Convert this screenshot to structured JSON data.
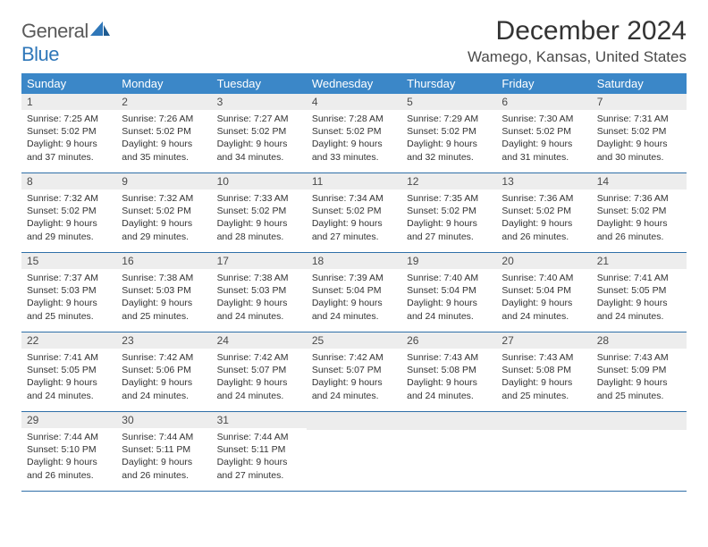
{
  "logo": {
    "general": "General",
    "blue": "Blue"
  },
  "title": "December 2024",
  "location": "Wamego, Kansas, United States",
  "colors": {
    "header_bg": "#3b87c8",
    "header_text": "#ffffff",
    "daynum_bg": "#ededed",
    "row_divider": "#2f6fa8",
    "logo_gray": "#5a5a5a",
    "logo_blue": "#2f77b9",
    "body_text": "#333333"
  },
  "weekdays": [
    "Sunday",
    "Monday",
    "Tuesday",
    "Wednesday",
    "Thursday",
    "Friday",
    "Saturday"
  ],
  "weeks": [
    [
      {
        "n": "1",
        "sr": "Sunrise: 7:25 AM",
        "ss": "Sunset: 5:02 PM",
        "d1": "Daylight: 9 hours",
        "d2": "and 37 minutes."
      },
      {
        "n": "2",
        "sr": "Sunrise: 7:26 AM",
        "ss": "Sunset: 5:02 PM",
        "d1": "Daylight: 9 hours",
        "d2": "and 35 minutes."
      },
      {
        "n": "3",
        "sr": "Sunrise: 7:27 AM",
        "ss": "Sunset: 5:02 PM",
        "d1": "Daylight: 9 hours",
        "d2": "and 34 minutes."
      },
      {
        "n": "4",
        "sr": "Sunrise: 7:28 AM",
        "ss": "Sunset: 5:02 PM",
        "d1": "Daylight: 9 hours",
        "d2": "and 33 minutes."
      },
      {
        "n": "5",
        "sr": "Sunrise: 7:29 AM",
        "ss": "Sunset: 5:02 PM",
        "d1": "Daylight: 9 hours",
        "d2": "and 32 minutes."
      },
      {
        "n": "6",
        "sr": "Sunrise: 7:30 AM",
        "ss": "Sunset: 5:02 PM",
        "d1": "Daylight: 9 hours",
        "d2": "and 31 minutes."
      },
      {
        "n": "7",
        "sr": "Sunrise: 7:31 AM",
        "ss": "Sunset: 5:02 PM",
        "d1": "Daylight: 9 hours",
        "d2": "and 30 minutes."
      }
    ],
    [
      {
        "n": "8",
        "sr": "Sunrise: 7:32 AM",
        "ss": "Sunset: 5:02 PM",
        "d1": "Daylight: 9 hours",
        "d2": "and 29 minutes."
      },
      {
        "n": "9",
        "sr": "Sunrise: 7:32 AM",
        "ss": "Sunset: 5:02 PM",
        "d1": "Daylight: 9 hours",
        "d2": "and 29 minutes."
      },
      {
        "n": "10",
        "sr": "Sunrise: 7:33 AM",
        "ss": "Sunset: 5:02 PM",
        "d1": "Daylight: 9 hours",
        "d2": "and 28 minutes."
      },
      {
        "n": "11",
        "sr": "Sunrise: 7:34 AM",
        "ss": "Sunset: 5:02 PM",
        "d1": "Daylight: 9 hours",
        "d2": "and 27 minutes."
      },
      {
        "n": "12",
        "sr": "Sunrise: 7:35 AM",
        "ss": "Sunset: 5:02 PM",
        "d1": "Daylight: 9 hours",
        "d2": "and 27 minutes."
      },
      {
        "n": "13",
        "sr": "Sunrise: 7:36 AM",
        "ss": "Sunset: 5:02 PM",
        "d1": "Daylight: 9 hours",
        "d2": "and 26 minutes."
      },
      {
        "n": "14",
        "sr": "Sunrise: 7:36 AM",
        "ss": "Sunset: 5:02 PM",
        "d1": "Daylight: 9 hours",
        "d2": "and 26 minutes."
      }
    ],
    [
      {
        "n": "15",
        "sr": "Sunrise: 7:37 AM",
        "ss": "Sunset: 5:03 PM",
        "d1": "Daylight: 9 hours",
        "d2": "and 25 minutes."
      },
      {
        "n": "16",
        "sr": "Sunrise: 7:38 AM",
        "ss": "Sunset: 5:03 PM",
        "d1": "Daylight: 9 hours",
        "d2": "and 25 minutes."
      },
      {
        "n": "17",
        "sr": "Sunrise: 7:38 AM",
        "ss": "Sunset: 5:03 PM",
        "d1": "Daylight: 9 hours",
        "d2": "and 24 minutes."
      },
      {
        "n": "18",
        "sr": "Sunrise: 7:39 AM",
        "ss": "Sunset: 5:04 PM",
        "d1": "Daylight: 9 hours",
        "d2": "and 24 minutes."
      },
      {
        "n": "19",
        "sr": "Sunrise: 7:40 AM",
        "ss": "Sunset: 5:04 PM",
        "d1": "Daylight: 9 hours",
        "d2": "and 24 minutes."
      },
      {
        "n": "20",
        "sr": "Sunrise: 7:40 AM",
        "ss": "Sunset: 5:04 PM",
        "d1": "Daylight: 9 hours",
        "d2": "and 24 minutes."
      },
      {
        "n": "21",
        "sr": "Sunrise: 7:41 AM",
        "ss": "Sunset: 5:05 PM",
        "d1": "Daylight: 9 hours",
        "d2": "and 24 minutes."
      }
    ],
    [
      {
        "n": "22",
        "sr": "Sunrise: 7:41 AM",
        "ss": "Sunset: 5:05 PM",
        "d1": "Daylight: 9 hours",
        "d2": "and 24 minutes."
      },
      {
        "n": "23",
        "sr": "Sunrise: 7:42 AM",
        "ss": "Sunset: 5:06 PM",
        "d1": "Daylight: 9 hours",
        "d2": "and 24 minutes."
      },
      {
        "n": "24",
        "sr": "Sunrise: 7:42 AM",
        "ss": "Sunset: 5:07 PM",
        "d1": "Daylight: 9 hours",
        "d2": "and 24 minutes."
      },
      {
        "n": "25",
        "sr": "Sunrise: 7:42 AM",
        "ss": "Sunset: 5:07 PM",
        "d1": "Daylight: 9 hours",
        "d2": "and 24 minutes."
      },
      {
        "n": "26",
        "sr": "Sunrise: 7:43 AM",
        "ss": "Sunset: 5:08 PM",
        "d1": "Daylight: 9 hours",
        "d2": "and 24 minutes."
      },
      {
        "n": "27",
        "sr": "Sunrise: 7:43 AM",
        "ss": "Sunset: 5:08 PM",
        "d1": "Daylight: 9 hours",
        "d2": "and 25 minutes."
      },
      {
        "n": "28",
        "sr": "Sunrise: 7:43 AM",
        "ss": "Sunset: 5:09 PM",
        "d1": "Daylight: 9 hours",
        "d2": "and 25 minutes."
      }
    ],
    [
      {
        "n": "29",
        "sr": "Sunrise: 7:44 AM",
        "ss": "Sunset: 5:10 PM",
        "d1": "Daylight: 9 hours",
        "d2": "and 26 minutes."
      },
      {
        "n": "30",
        "sr": "Sunrise: 7:44 AM",
        "ss": "Sunset: 5:11 PM",
        "d1": "Daylight: 9 hours",
        "d2": "and 26 minutes."
      },
      {
        "n": "31",
        "sr": "Sunrise: 7:44 AM",
        "ss": "Sunset: 5:11 PM",
        "d1": "Daylight: 9 hours",
        "d2": "and 27 minutes."
      },
      {
        "empty": true
      },
      {
        "empty": true
      },
      {
        "empty": true
      },
      {
        "empty": true
      }
    ]
  ]
}
